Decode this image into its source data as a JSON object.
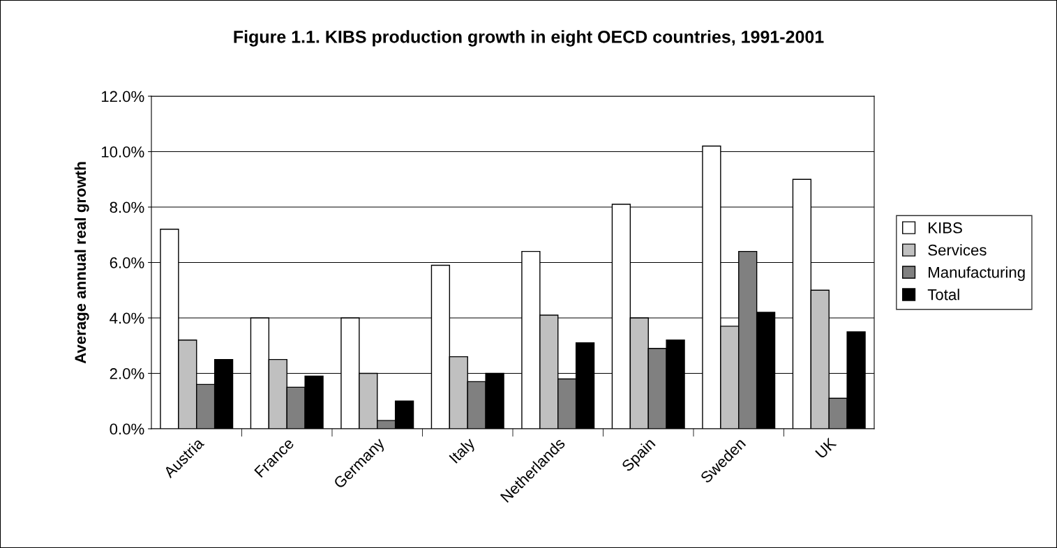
{
  "chart_data": {
    "type": "bar",
    "title": "Figure 1.1. KIBS production growth in eight OECD countries, 1991-2001",
    "ylabel": "Average annual real growth",
    "categories": [
      "Austria",
      "France",
      "Germany",
      "Italy",
      "Netherlands",
      "Spain",
      "Sweden",
      "UK"
    ],
    "series": [
      {
        "name": "KIBS",
        "color": "#ffffff",
        "values": [
          7.2,
          4.0,
          4.0,
          5.9,
          6.4,
          8.1,
          10.2,
          9.0
        ]
      },
      {
        "name": "Services",
        "color": "#c0c0c0",
        "values": [
          3.2,
          2.5,
          2.0,
          2.6,
          4.1,
          4.0,
          3.7,
          5.0
        ]
      },
      {
        "name": "Manufacturing",
        "color": "#808080",
        "values": [
          1.6,
          1.5,
          0.3,
          1.7,
          1.8,
          2.9,
          6.4,
          1.1
        ]
      },
      {
        "name": "Total",
        "color": "#000000",
        "values": [
          2.5,
          1.9,
          1.0,
          2.0,
          3.1,
          3.2,
          4.2,
          3.5
        ]
      }
    ],
    "ylim": [
      0,
      12
    ],
    "yticks": [
      {
        "value": 0,
        "label": "0.0%"
      },
      {
        "value": 2,
        "label": "2.0%"
      },
      {
        "value": 4,
        "label": "4.0%"
      },
      {
        "value": 6,
        "label": "6.0%"
      },
      {
        "value": 8,
        "label": "8.0%"
      },
      {
        "value": 10,
        "label": "10.0%"
      },
      {
        "value": 12,
        "label": "12.0%"
      }
    ],
    "grid": "y",
    "legend": "right"
  }
}
